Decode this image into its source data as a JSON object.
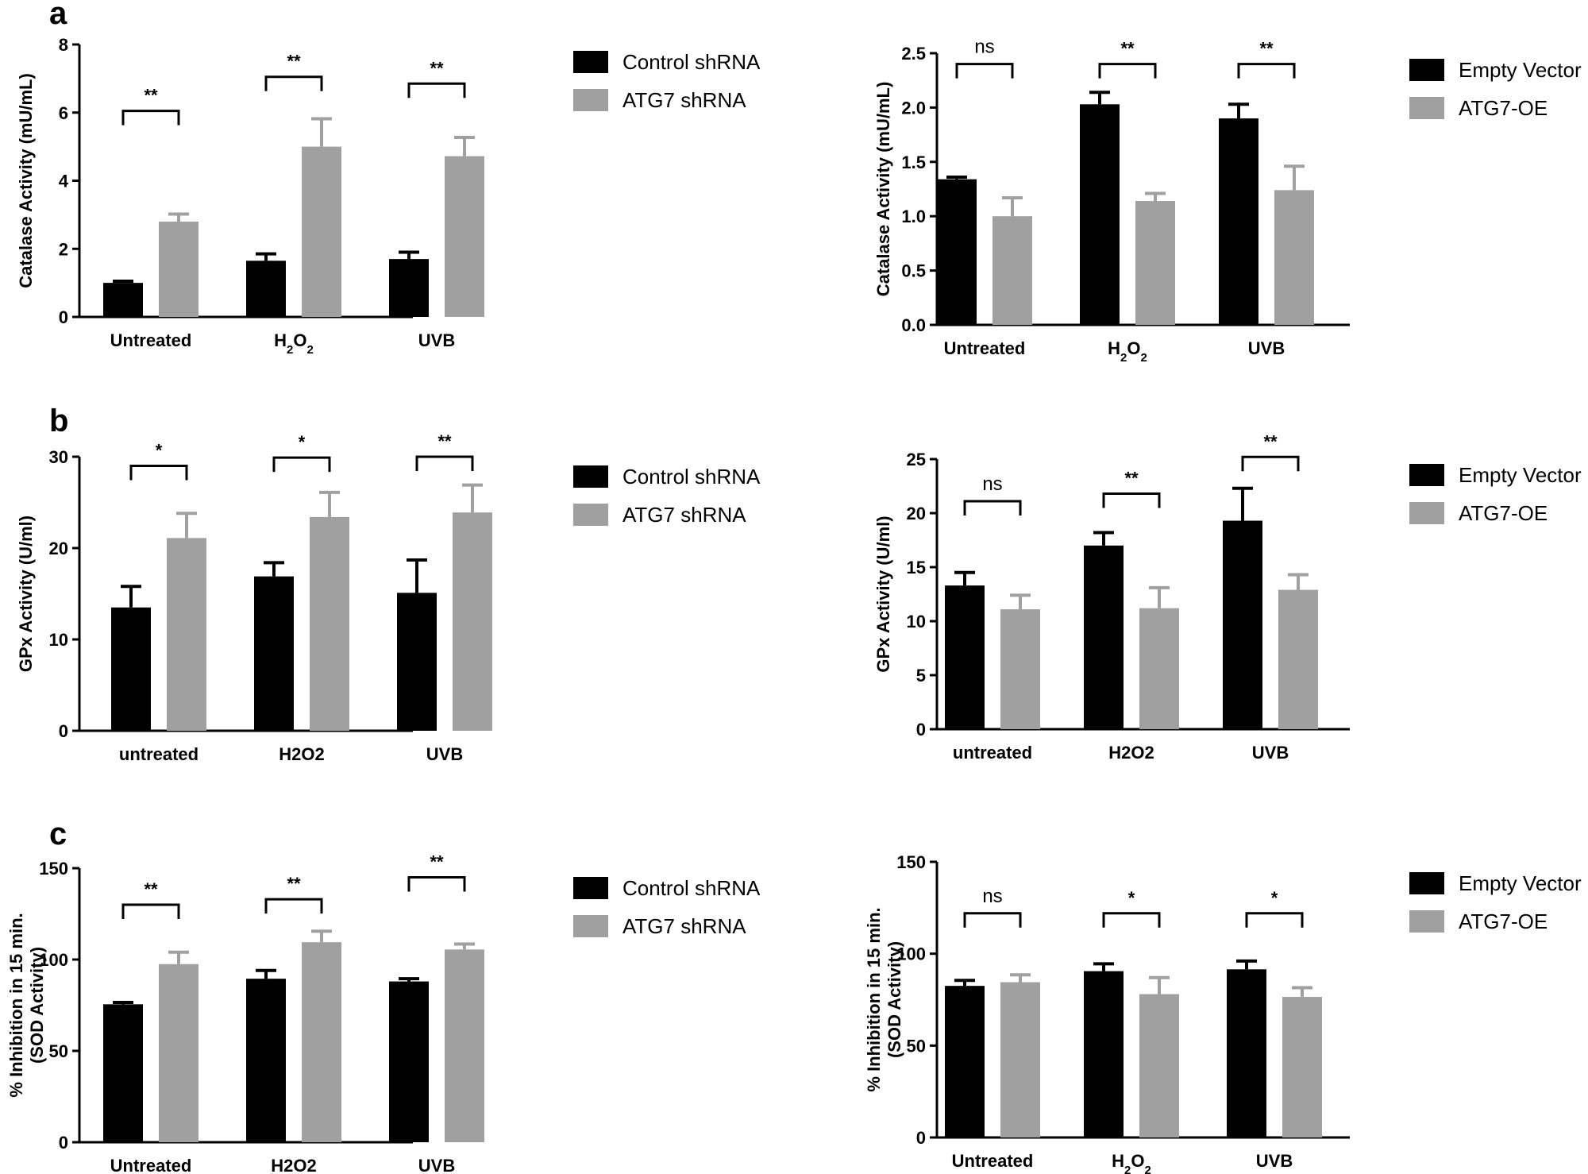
{
  "colors": {
    "series1": "#000000",
    "series2": "#a0a0a0",
    "axis": "#000000"
  },
  "panels": [
    {
      "letter": "a"
    },
    {
      "letter": "b"
    },
    {
      "letter": "c"
    }
  ],
  "chart_data": [
    {
      "id": "a-left",
      "type": "bar",
      "panel": "a",
      "title": "",
      "xlabel": "",
      "ylabel": "Catalase Activity  (mU/mL)",
      "ylim": [
        0,
        8
      ],
      "yticks": [
        "0",
        "2",
        "4",
        "6",
        "8"
      ],
      "ytick_values": [
        0,
        2,
        4,
        6,
        8
      ],
      "categories": [
        "Untreated",
        "H2O2",
        "UVB"
      ],
      "categories_display": [
        [
          {
            "t": "Untreated"
          }
        ],
        [
          {
            "t": "H"
          },
          {
            "t": "2",
            "sub": true
          },
          {
            "t": "O"
          },
          {
            "t": "2",
            "sub": true
          }
        ],
        [
          {
            "t": "UVB"
          }
        ]
      ],
      "series": [
        {
          "name": "Control shRNA",
          "values": [
            1.0,
            1.65,
            1.7
          ],
          "errors": [
            0.05,
            0.2,
            0.2
          ]
        },
        {
          "name": "ATG7 shRNA",
          "values": [
            2.8,
            5.0,
            4.72
          ],
          "errors": [
            0.22,
            0.82,
            0.55
          ]
        }
      ],
      "significance": [
        "**",
        "**",
        "**"
      ],
      "sig_levels": [
        6.05,
        7.05,
        6.85
      ]
    },
    {
      "id": "a-right",
      "type": "bar",
      "panel": "a",
      "title": "",
      "xlabel": "",
      "ylabel": "Catalase Activity  (mU/mL)",
      "ylim": [
        0,
        2.5
      ],
      "yticks": [
        "0.0",
        "0.5",
        "1.0",
        "1.5",
        "2.0",
        "2.5"
      ],
      "ytick_values": [
        0,
        0.5,
        1.0,
        1.5,
        2.0,
        2.5
      ],
      "categories": [
        "Untreated",
        "H2O2",
        "UVB"
      ],
      "categories_display": [
        [
          {
            "t": "Untreated"
          }
        ],
        [
          {
            "t": "H"
          },
          {
            "t": "2",
            "sub": true
          },
          {
            "t": "O"
          },
          {
            "t": "2",
            "sub": true
          }
        ],
        [
          {
            "t": "UVB"
          }
        ]
      ],
      "series": [
        {
          "name": "Empty Vector",
          "values": [
            1.34,
            2.03,
            1.9
          ],
          "errors": [
            0.02,
            0.11,
            0.13
          ]
        },
        {
          "name": "ATG7-OE",
          "values": [
            1.0,
            1.14,
            1.24
          ],
          "errors": [
            0.17,
            0.07,
            0.22
          ]
        }
      ],
      "significance": [
        "ns",
        "**",
        "**"
      ],
      "sig_levels": [
        2.4,
        2.4,
        2.4
      ]
    },
    {
      "id": "b-left",
      "type": "bar",
      "panel": "b",
      "title": "",
      "xlabel": "",
      "ylabel": "GPx  Activity (U/ml)",
      "ylim": [
        0,
        30
      ],
      "yticks": [
        "0",
        "10",
        "20",
        "30"
      ],
      "ytick_values": [
        0,
        10,
        20,
        30
      ],
      "categories": [
        "untreated",
        "H2O2",
        "UVB"
      ],
      "categories_display": [
        [
          {
            "t": "untreated"
          }
        ],
        [
          {
            "t": "H2O2"
          }
        ],
        [
          {
            "t": "UVB"
          }
        ]
      ],
      "series": [
        {
          "name": "Control shRNA",
          "values": [
            13.5,
            16.9,
            15.1
          ],
          "errors": [
            2.3,
            1.5,
            3.6
          ]
        },
        {
          "name": "ATG7 shRNA",
          "values": [
            21.1,
            23.4,
            23.9
          ],
          "errors": [
            2.7,
            2.7,
            3.0
          ]
        }
      ],
      "significance": [
        "*",
        "*",
        "**"
      ],
      "sig_levels": [
        29.0,
        29.9,
        30.0
      ]
    },
    {
      "id": "b-right",
      "type": "bar",
      "panel": "b",
      "title": "",
      "xlabel": "",
      "ylabel": "GPx  Activity (U/ml)",
      "ylim": [
        0,
        25
      ],
      "yticks": [
        "0",
        "5",
        "10",
        "15",
        "20",
        "25"
      ],
      "ytick_values": [
        0,
        5,
        10,
        15,
        20,
        25
      ],
      "categories": [
        "untreated",
        "H2O2",
        "UVB"
      ],
      "categories_display": [
        [
          {
            "t": "untreated"
          }
        ],
        [
          {
            "t": "H2O2"
          }
        ],
        [
          {
            "t": "UVB"
          }
        ]
      ],
      "series": [
        {
          "name": "Empty Vector",
          "values": [
            13.3,
            17.0,
            19.3
          ],
          "errors": [
            1.2,
            1.2,
            3.0
          ]
        },
        {
          "name": "ATG7-OE",
          "values": [
            11.1,
            11.2,
            12.9
          ],
          "errors": [
            1.3,
            1.9,
            1.4
          ]
        }
      ],
      "significance": [
        "ns",
        "**",
        "**"
      ],
      "sig_levels": [
        21.1,
        21.8,
        25.2
      ]
    },
    {
      "id": "c-left",
      "type": "bar",
      "panel": "c",
      "title": "",
      "xlabel": "",
      "ylabel": "% Inhibition in  15  min. (SOD Activity)",
      "ylabel_lines": [
        "% Inhibition in  15  min.",
        "(SOD Activity)"
      ],
      "ylim": [
        0,
        150
      ],
      "yticks": [
        "0",
        "50",
        "100",
        "150"
      ],
      "ytick_values": [
        0,
        50,
        100,
        150
      ],
      "categories": [
        "Untreated",
        "H2O2",
        "UVB"
      ],
      "categories_display": [
        [
          {
            "t": "Untreated"
          }
        ],
        [
          {
            "t": "H2O2"
          }
        ],
        [
          {
            "t": "UVB"
          }
        ]
      ],
      "series": [
        {
          "name": "Control shRNA",
          "values": [
            75.5,
            89.5,
            88.0
          ],
          "errors": [
            1.0,
            4.5,
            1.5
          ]
        },
        {
          "name": "ATG7 shRNA",
          "values": [
            97.5,
            109.5,
            105.5
          ],
          "errors": [
            6.5,
            6.0,
            3.0
          ]
        }
      ],
      "significance": [
        "**",
        "**",
        "**"
      ],
      "sig_levels": [
        130.0,
        133.0,
        145.0
      ]
    },
    {
      "id": "c-right",
      "type": "bar",
      "panel": "c",
      "title": "",
      "xlabel": "",
      "ylabel": "% Inhibition in  15  min. (SOD Activity)",
      "ylabel_lines": [
        "% Inhibition in  15  min.",
        "(SOD Activity)"
      ],
      "ylim": [
        0,
        150
      ],
      "yticks": [
        "0",
        "50",
        "100",
        "150"
      ],
      "ytick_values": [
        0,
        50,
        100,
        150
      ],
      "categories": [
        "Untreated",
        "H2O2",
        "UVB"
      ],
      "categories_display": [
        [
          {
            "t": "Untreated"
          }
        ],
        [
          {
            "t": "H"
          },
          {
            "t": "2",
            "sub": true
          },
          {
            "t": "O"
          },
          {
            "t": "2",
            "sub": true
          }
        ],
        [
          {
            "t": "UVB"
          }
        ]
      ],
      "series": [
        {
          "name": "Empty Vector",
          "values": [
            82.5,
            90.5,
            91.5
          ],
          "errors": [
            3.0,
            4.0,
            4.5
          ]
        },
        {
          "name": "ATG7-OE",
          "values": [
            84.5,
            78.0,
            76.5
          ],
          "errors": [
            4.0,
            9.0,
            5.0
          ]
        }
      ],
      "significance": [
        "ns",
        "*",
        "*"
      ],
      "sig_levels": [
        122.0,
        122.0,
        122.0
      ]
    }
  ]
}
